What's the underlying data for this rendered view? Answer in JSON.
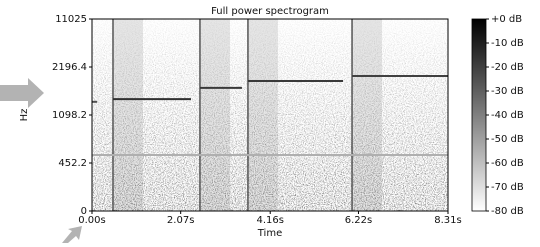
{
  "chart_data": {
    "type": "spectrogram",
    "title": "Full power spectrogram",
    "xlabel": "Time",
    "ylabel": "Hz",
    "xlim": [
      0,
      8.31
    ],
    "xticks": [
      {
        "value": 0,
        "label": "0.00s"
      },
      {
        "value": 2.07,
        "label": "2.07s"
      },
      {
        "value": 4.16,
        "label": "4.16s"
      },
      {
        "value": 6.22,
        "label": "6.22s"
      },
      {
        "value": 8.31,
        "label": "8.31s"
      }
    ],
    "ylim": [
      0,
      11025
    ],
    "yticks": [
      0,
      452.2,
      1098.2,
      2196.4,
      11025
    ],
    "zlim": [
      -80,
      0
    ],
    "zticks": [
      {
        "value": 0,
        "label": "+0 dB"
      },
      {
        "value": -10,
        "label": "-10 dB"
      },
      {
        "value": -20,
        "label": "-20 dB"
      },
      {
        "value": -30,
        "label": "-30 dB"
      },
      {
        "value": -40,
        "label": "-40 dB"
      },
      {
        "value": -50,
        "label": "-50 dB"
      },
      {
        "value": -60,
        "label": "-60 dB"
      },
      {
        "value": -70,
        "label": "-70 dB"
      },
      {
        "value": -80,
        "label": "-80 dB"
      }
    ],
    "onsets": [
      0.49,
      2.52,
      3.64,
      6.07
    ],
    "tones": [
      {
        "start": 0,
        "end": 0.12,
        "freq": 1400,
        "level": -25
      },
      {
        "start": 0.49,
        "end": 2.31,
        "freq": 1460,
        "level": -15
      },
      {
        "start": 2.52,
        "end": 3.5,
        "freq": 1720,
        "level": -18
      },
      {
        "start": 3.64,
        "end": 5.86,
        "freq": 1876,
        "level": -18
      },
      {
        "start": 6.07,
        "end": 8.31,
        "freq": 1990,
        "level": -20
      },
      {
        "start": 0,
        "end": 8.31,
        "freq": 560,
        "level": -55
      }
    ]
  }
}
